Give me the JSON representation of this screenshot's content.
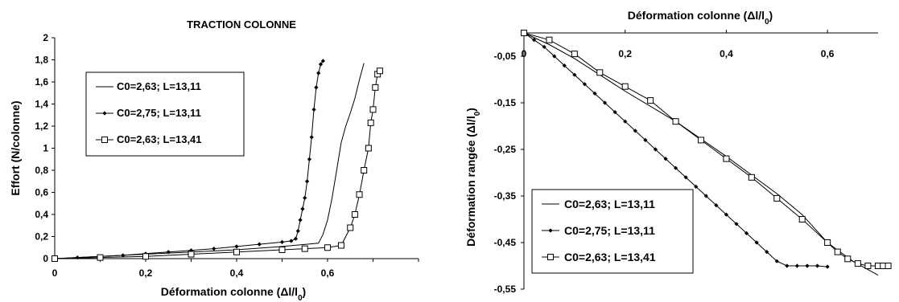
{
  "chart_data": [
    {
      "type": "line",
      "title": "TRACTION COLONNE",
      "xlabel": "Déformation colonne (Δl/l0)",
      "ylabel": "Effort (N/colonne)",
      "xlim": [
        0,
        0.7
      ],
      "ylim": [
        0,
        2
      ],
      "x_ticks": [
        "0",
        "0,2",
        "0,4",
        "0,6"
      ],
      "y_ticks": [
        "0",
        "0,2",
        "0,4",
        "0,6",
        "0,8",
        "1",
        "1,2",
        "1,4",
        "1,6",
        "1,8",
        "2"
      ],
      "grid": false,
      "legend_position": "left",
      "series": [
        {
          "name": "C0=2,63; L=13,11",
          "marker": "none",
          "x": [
            0,
            0.1,
            0.2,
            0.3,
            0.4,
            0.5,
            0.58,
            0.59,
            0.6,
            0.61,
            0.62,
            0.63,
            0.64,
            0.65,
            0.66,
            0.67,
            0.68
          ],
          "y": [
            0,
            0.02,
            0.04,
            0.06,
            0.08,
            0.11,
            0.14,
            0.22,
            0.35,
            0.55,
            0.8,
            1.05,
            1.2,
            1.32,
            1.45,
            1.62,
            1.77
          ]
        },
        {
          "name": "C0=2,75; L=13,11",
          "marker": "diamond",
          "x": [
            0,
            0.05,
            0.1,
            0.15,
            0.2,
            0.25,
            0.3,
            0.35,
            0.4,
            0.45,
            0.5,
            0.52,
            0.53,
            0.535,
            0.54,
            0.545,
            0.55,
            0.555,
            0.56,
            0.565,
            0.57,
            0.575,
            0.58,
            0.585,
            0.59
          ],
          "y": [
            0,
            0.01,
            0.02,
            0.03,
            0.045,
            0.06,
            0.075,
            0.09,
            0.11,
            0.13,
            0.15,
            0.16,
            0.18,
            0.25,
            0.35,
            0.45,
            0.55,
            0.7,
            0.9,
            1.1,
            1.35,
            1.55,
            1.68,
            1.76,
            1.79
          ]
        },
        {
          "name": "C0=2,63; L=13,41",
          "marker": "square",
          "x": [
            0,
            0.1,
            0.2,
            0.3,
            0.4,
            0.5,
            0.55,
            0.6,
            0.63,
            0.65,
            0.66,
            0.67,
            0.68,
            0.69,
            0.695,
            0.7,
            0.705,
            0.71,
            0.715
          ],
          "y": [
            0,
            0.01,
            0.02,
            0.04,
            0.06,
            0.08,
            0.09,
            0.1,
            0.12,
            0.28,
            0.4,
            0.58,
            0.8,
            1.0,
            1.23,
            1.35,
            1.55,
            1.67,
            1.7
          ]
        }
      ]
    },
    {
      "type": "line",
      "title": "Déformation colonne (Δl/l0)",
      "xlabel": "",
      "ylabel": "Déformation rangée (Δl/l0)",
      "xlim": [
        0,
        0.72
      ],
      "ylim": [
        -0.55,
        0
      ],
      "x_axis_position": "top",
      "x_ticks": [
        "0",
        "0,2",
        "0,4",
        "0,6"
      ],
      "y_ticks": [
        "-0,05",
        "-0,15",
        "-0,25",
        "-0,35",
        "-0,45",
        "-0,55"
      ],
      "grid": false,
      "legend_position": "bottom-left",
      "series": [
        {
          "name": "C0=2,63; L=13,11",
          "marker": "none",
          "x": [
            0,
            0.05,
            0.1,
            0.2,
            0.3,
            0.4,
            0.5,
            0.55,
            0.6,
            0.65,
            0.7
          ],
          "y": [
            0,
            -0.025,
            -0.055,
            -0.125,
            -0.19,
            -0.265,
            -0.345,
            -0.39,
            -0.45,
            -0.49,
            -0.52
          ]
        },
        {
          "name": "C0=2,75; L=13,11",
          "marker": "diamond",
          "x": [
            0,
            0.02,
            0.04,
            0.06,
            0.08,
            0.1,
            0.12,
            0.14,
            0.16,
            0.18,
            0.2,
            0.22,
            0.24,
            0.26,
            0.28,
            0.3,
            0.32,
            0.34,
            0.36,
            0.38,
            0.4,
            0.42,
            0.44,
            0.46,
            0.48,
            0.5,
            0.52,
            0.54,
            0.56,
            0.58,
            0.6
          ],
          "y": [
            0,
            -0.015,
            -0.03,
            -0.05,
            -0.07,
            -0.09,
            -0.11,
            -0.13,
            -0.15,
            -0.17,
            -0.19,
            -0.21,
            -0.23,
            -0.25,
            -0.27,
            -0.29,
            -0.31,
            -0.33,
            -0.35,
            -0.37,
            -0.39,
            -0.41,
            -0.43,
            -0.45,
            -0.47,
            -0.49,
            -0.5,
            -0.5,
            -0.5,
            -0.5,
            -0.502
          ]
        },
        {
          "name": "C0=2,63; L=13,41",
          "marker": "square",
          "x": [
            0,
            0.05,
            0.1,
            0.15,
            0.2,
            0.25,
            0.3,
            0.35,
            0.4,
            0.45,
            0.5,
            0.55,
            0.6,
            0.62,
            0.64,
            0.66,
            0.68,
            0.7,
            0.71,
            0.72
          ],
          "y": [
            0,
            -0.015,
            -0.045,
            -0.085,
            -0.115,
            -0.145,
            -0.19,
            -0.23,
            -0.27,
            -0.31,
            -0.355,
            -0.4,
            -0.45,
            -0.47,
            -0.485,
            -0.495,
            -0.5,
            -0.5,
            -0.5,
            -0.5
          ]
        }
      ]
    }
  ]
}
